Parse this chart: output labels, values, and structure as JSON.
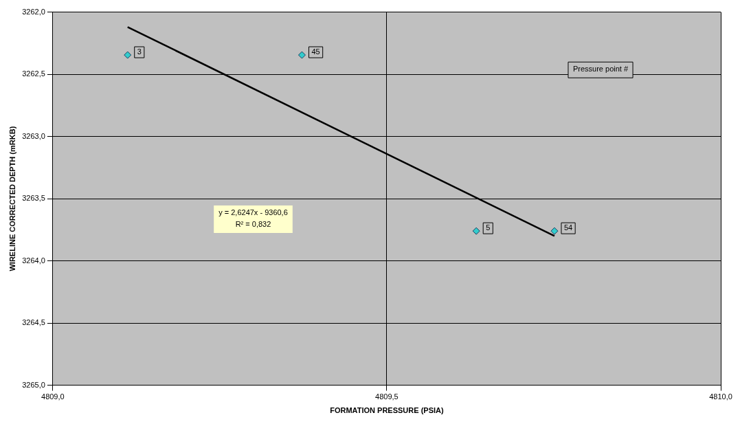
{
  "chart_data": {
    "type": "scatter",
    "xlabel": "FORMATION PRESSURE (PSIA)",
    "ylabel": "WIRELINE CORRECTED DEPTH (mRKB)",
    "xlim": [
      4809.0,
      4810.0
    ],
    "xticks": [
      {
        "value": 4809.0,
        "label": "4809,0"
      },
      {
        "value": 4809.5,
        "label": "4809,5"
      },
      {
        "value": 4810.0,
        "label": "4810,0"
      }
    ],
    "ylim": [
      3265.0,
      3262.0
    ],
    "yticks": [
      {
        "value": 3262.0,
        "label": "3262,0"
      },
      {
        "value": 3262.5,
        "label": "3262,5"
      },
      {
        "value": 3263.0,
        "label": "3263,0"
      },
      {
        "value": 3263.5,
        "label": "3263,5"
      },
      {
        "value": 3264.0,
        "label": "3264,0"
      },
      {
        "value": 3264.5,
        "label": "3264,5"
      },
      {
        "value": 3265.0,
        "label": "3265,0"
      }
    ],
    "series": [
      {
        "type": "scatter",
        "color": "#33cccc",
        "marker": "diamond",
        "x": [
          4809.112,
          4809.373,
          4809.634,
          4809.751
        ],
        "values": [
          3262.345,
          3262.345,
          3263.76,
          3263.76
        ]
      },
      {
        "type": "line",
        "color": "#000000",
        "marker": "none",
        "line_style": "solid",
        "x": [
          4809.112,
          4809.751
        ],
        "values": [
          3262.12,
          3263.8
        ]
      }
    ],
    "annotations": [
      "Pressure point #",
      "y = 2,6247x - 9360,6\nR² = 0,832",
      {
        "text": "3",
        "x": 4809.112,
        "y": 3262.345
      },
      {
        "text": "45",
        "x": 4809.373,
        "y": 3262.345
      },
      {
        "text": "5",
        "x": 4809.634,
        "y": 3263.76
      },
      {
        "text": "54",
        "x": 4809.751,
        "y": 3263.76
      }
    ],
    "grid": true,
    "legend": false
  }
}
